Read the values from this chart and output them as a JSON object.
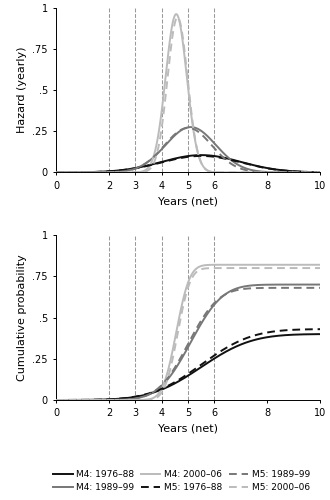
{
  "vlines": [
    2,
    3,
    4,
    5,
    6
  ],
  "xlim": [
    0,
    10
  ],
  "xticks": [
    0,
    2,
    3,
    4,
    5,
    6,
    8,
    10
  ],
  "xticklabels": [
    "0",
    "2",
    "3",
    "4",
    "5",
    "6",
    "8",
    "10"
  ],
  "xlabel": "Years (net)",
  "hazard_ylim": [
    0,
    1
  ],
  "hazard_yticks": [
    0,
    0.25,
    0.5,
    0.75,
    1
  ],
  "hazard_yticklabels": [
    "0",
    ".25",
    ".5",
    ".75",
    "1"
  ],
  "hazard_ylabel": "Hazard (yearly)",
  "cumul_ylim": [
    0,
    1
  ],
  "cumul_yticks": [
    0,
    0.25,
    0.5,
    0.75,
    1
  ],
  "cumul_yticklabels": [
    "0",
    ".25",
    ".5",
    ".75",
    "1"
  ],
  "cumul_ylabel": "Cumulative probability",
  "color_dark": "#111111",
  "color_mid": "#777777",
  "color_light": "#bbbbbb",
  "vline_color": "#999999",
  "hazard_curves": {
    "M4_dark": {
      "mu": 5.5,
      "sigma": 1.5,
      "amp": 0.105
    },
    "M4_mid": {
      "mu": 5.1,
      "sigma": 0.95,
      "amp": 0.275
    },
    "M4_light": {
      "mu": 4.55,
      "sigma": 0.4,
      "amp": 0.96
    },
    "M5_dark": {
      "mu": 5.5,
      "sigma": 1.5,
      "amp": 0.1
    },
    "M5_mid": {
      "mu": 5.0,
      "sigma": 0.9,
      "amp": 0.27
    },
    "M5_light": {
      "mu": 4.6,
      "sigma": 0.38,
      "amp": 0.94
    }
  },
  "cumul_curves": {
    "M4_dark": {
      "mu": 5.5,
      "sigma": 1.5,
      "max_val": 0.4
    },
    "M4_mid": {
      "mu": 5.1,
      "sigma": 0.95,
      "max_val": 0.7
    },
    "M4_light": {
      "mu": 4.55,
      "sigma": 0.4,
      "max_val": 0.82
    },
    "M5_dark": {
      "mu": 5.5,
      "sigma": 1.5,
      "max_val": 0.43
    },
    "M5_mid": {
      "mu": 5.0,
      "sigma": 0.9,
      "max_val": 0.68
    },
    "M5_light": {
      "mu": 4.6,
      "sigma": 0.38,
      "max_val": 0.8
    }
  },
  "legend_entries": [
    {
      "label": "M4: 1976–88",
      "color": "#111111",
      "ls": "solid"
    },
    {
      "label": "M4: 1989–99",
      "color": "#777777",
      "ls": "solid"
    },
    {
      "label": "M4: 2000–06",
      "color": "#bbbbbb",
      "ls": "solid"
    },
    {
      "label": "M5: 1976–88",
      "color": "#111111",
      "ls": "dashed"
    },
    {
      "label": "M5: 1989–99",
      "color": "#777777",
      "ls": "dashed"
    },
    {
      "label": "M5: 2000–06",
      "color": "#bbbbbb",
      "ls": "dashed"
    }
  ]
}
